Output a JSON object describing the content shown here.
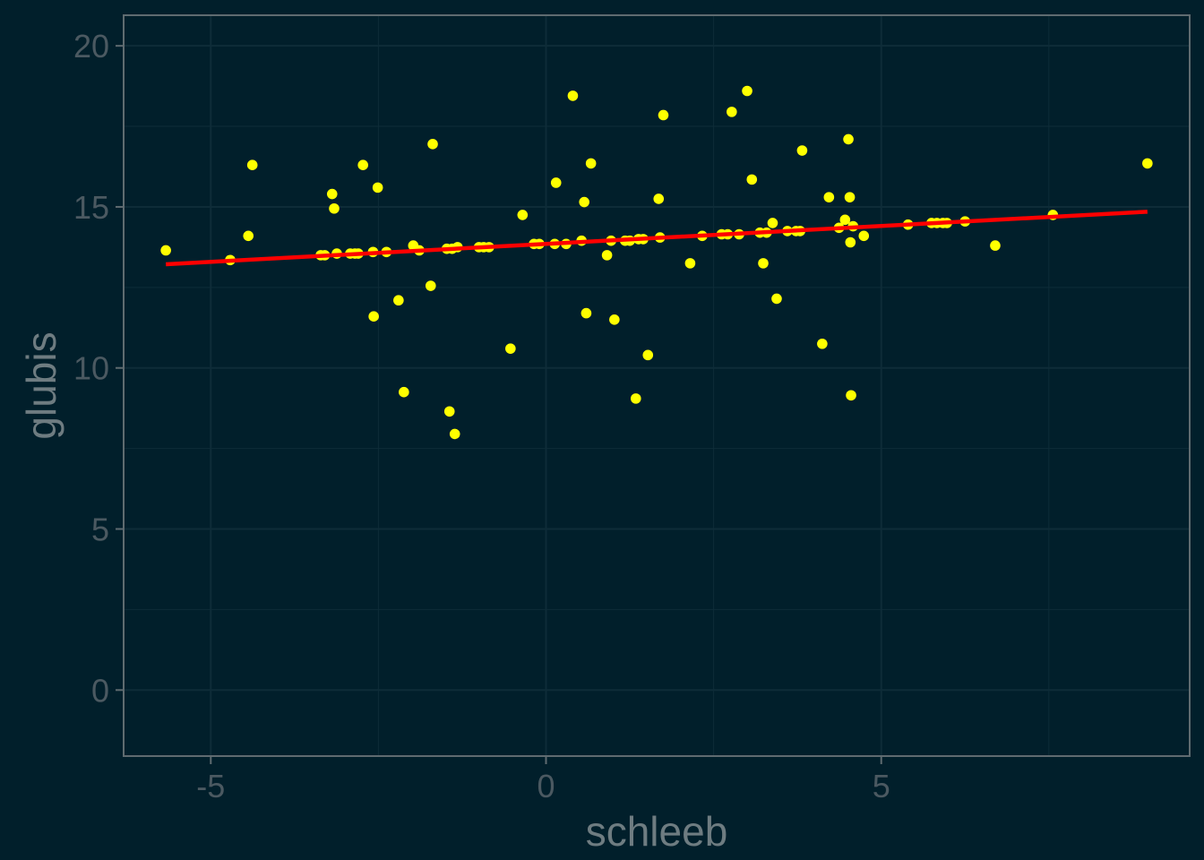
{
  "chart_data": {
    "type": "scatter",
    "title": "",
    "xlabel": "schleeb",
    "ylabel": "glubis",
    "xlim": [
      -6.3,
      9.6
    ],
    "ylim": [
      -2.05,
      20.95
    ],
    "x_ticks": [
      -5,
      0,
      5
    ],
    "y_ticks": [
      0,
      5,
      10,
      15,
      20
    ],
    "x_tick_labels": [
      "-5",
      "0",
      "5"
    ],
    "y_tick_labels": [
      "0",
      "5",
      "10",
      "15",
      "20"
    ],
    "grid": true,
    "legend": "none",
    "colors": {
      "background": "#011f2b",
      "panel_border": "#5f6b70",
      "grid": "#0e2c38",
      "points": "#ffff00",
      "fit_line": "#ff0000"
    },
    "series": [
      {
        "type": "scatter",
        "points": [
          [
            -5.67,
            13.65
          ],
          [
            -4.71,
            13.35
          ],
          [
            -4.44,
            14.1
          ],
          [
            -4.38,
            16.3
          ],
          [
            -3.36,
            13.5
          ],
          [
            -3.3,
            13.5
          ],
          [
            -3.19,
            15.4
          ],
          [
            -3.16,
            14.95
          ],
          [
            -3.12,
            13.55
          ],
          [
            -2.92,
            13.55
          ],
          [
            -2.85,
            13.55
          ],
          [
            -2.8,
            13.55
          ],
          [
            -2.73,
            16.3
          ],
          [
            -2.58,
            13.6
          ],
          [
            -2.57,
            11.6
          ],
          [
            -2.51,
            15.6
          ],
          [
            -2.38,
            13.6
          ],
          [
            -2.2,
            12.1
          ],
          [
            -2.12,
            9.25
          ],
          [
            -1.98,
            13.8
          ],
          [
            -1.89,
            13.65
          ],
          [
            -1.72,
            12.55
          ],
          [
            -1.69,
            16.95
          ],
          [
            -1.48,
            13.7
          ],
          [
            -1.44,
            8.65
          ],
          [
            -1.4,
            13.7
          ],
          [
            -1.36,
            7.95
          ],
          [
            -1.32,
            13.75
          ],
          [
            -1.0,
            13.75
          ],
          [
            -0.93,
            13.75
          ],
          [
            -0.85,
            13.75
          ],
          [
            -0.53,
            10.6
          ],
          [
            -0.35,
            14.75
          ],
          [
            -0.18,
            13.85
          ],
          [
            -0.1,
            13.85
          ],
          [
            0.13,
            13.85
          ],
          [
            0.15,
            15.75
          ],
          [
            0.3,
            13.85
          ],
          [
            0.4,
            18.45
          ],
          [
            0.53,
            13.95
          ],
          [
            0.57,
            15.15
          ],
          [
            0.6,
            11.7
          ],
          [
            0.67,
            16.35
          ],
          [
            0.91,
            13.5
          ],
          [
            0.97,
            13.95
          ],
          [
            1.02,
            11.5
          ],
          [
            1.18,
            13.95
          ],
          [
            1.25,
            13.95
          ],
          [
            1.34,
            9.05
          ],
          [
            1.38,
            14.0
          ],
          [
            1.45,
            14.0
          ],
          [
            1.52,
            10.4
          ],
          [
            1.68,
            15.25
          ],
          [
            1.7,
            14.05
          ],
          [
            1.75,
            17.85
          ],
          [
            2.15,
            13.25
          ],
          [
            2.33,
            14.1
          ],
          [
            2.62,
            14.15
          ],
          [
            2.71,
            14.15
          ],
          [
            2.77,
            17.95
          ],
          [
            2.88,
            14.15
          ],
          [
            3.0,
            18.6
          ],
          [
            3.07,
            15.85
          ],
          [
            3.19,
            14.2
          ],
          [
            3.24,
            13.25
          ],
          [
            3.29,
            14.2
          ],
          [
            3.38,
            14.5
          ],
          [
            3.44,
            12.15
          ],
          [
            3.6,
            14.25
          ],
          [
            3.73,
            14.25
          ],
          [
            3.79,
            14.25
          ],
          [
            3.82,
            16.75
          ],
          [
            4.12,
            10.75
          ],
          [
            4.22,
            15.3
          ],
          [
            4.37,
            14.35
          ],
          [
            4.46,
            14.6
          ],
          [
            4.51,
            17.1
          ],
          [
            4.53,
            15.3
          ],
          [
            4.54,
            13.9
          ],
          [
            4.55,
            9.15
          ],
          [
            4.58,
            14.4
          ],
          [
            4.74,
            14.1
          ],
          [
            5.4,
            14.45
          ],
          [
            5.75,
            14.5
          ],
          [
            5.83,
            14.5
          ],
          [
            5.92,
            14.5
          ],
          [
            5.98,
            14.5
          ],
          [
            6.25,
            14.55
          ],
          [
            6.7,
            13.8
          ],
          [
            7.56,
            14.75
          ],
          [
            8.97,
            16.35
          ]
        ]
      },
      {
        "type": "line",
        "method": "linear fit",
        "x": [
          -5.67,
          8.97
        ],
        "y": [
          13.22,
          14.85
        ]
      }
    ]
  }
}
